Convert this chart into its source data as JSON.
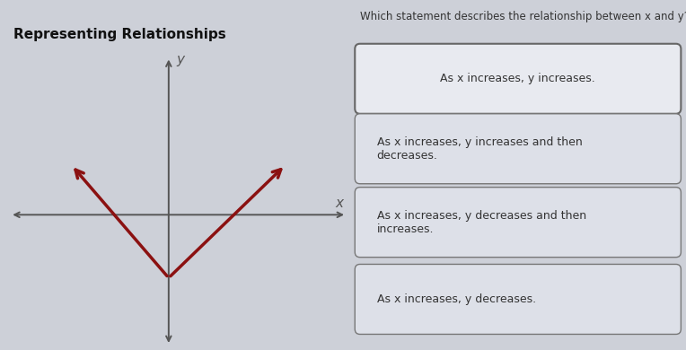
{
  "title": "Representing Relationships",
  "question": "Which statement describes the relationship between x and y?",
  "options": [
    "As x increases, y increases.",
    "As x increases, y increases and then\ndecreases.",
    "As x increases, y decreases and then\nincreases.",
    "As x increases, y decreases."
  ],
  "bg_color": "#cdd0d8",
  "graph_bg": "#d4d7df",
  "option_bg_selected": "#e8eaf0",
  "option_bg_normal": "#dde0e8",
  "option_border": "#777777",
  "arrow_color": "#8B1111",
  "axis_color": "#555555",
  "title_color": "#111111",
  "question_color": "#333333",
  "text_color": "#333333",
  "v_vertex_x": 0.0,
  "v_vertex_y": -0.7,
  "v_left_x": -1.5,
  "v_left_y": 0.55,
  "v_right_x": 1.8,
  "v_right_y": 0.55,
  "xlim": [
    -2.5,
    2.8
  ],
  "ylim": [
    -1.5,
    1.8
  ]
}
